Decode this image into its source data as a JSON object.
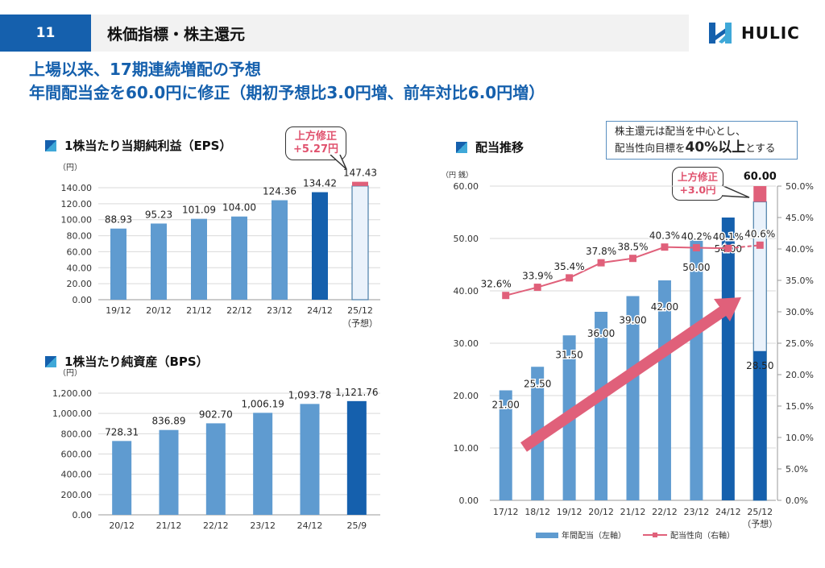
{
  "header": {
    "page_number": "11",
    "title": "株価指標・株主還元",
    "logo_text": "HULIC"
  },
  "headline": {
    "line1": "上場以来、17期連続増配の予想",
    "line2": "年間配当金を60.0円に修正（期初予想比3.0円増、前年対比6.0円増）"
  },
  "eps_section": {
    "title": "1株当たり当期純利益（EPS）",
    "callout_line1": "上方修正",
    "callout_line2": "+5.27円"
  },
  "bps_section": {
    "title": "1株当たり純資産（BPS）"
  },
  "dividend_section": {
    "title": "配当推移",
    "policy_line1": "株主還元は配当を中心とし、",
    "policy_line2_pre": "配当性向目標を",
    "policy_line2_bold": "40%以上",
    "policy_line2_post": "とする",
    "callout_line1": "上方修正",
    "callout_line2": "+3.0円"
  },
  "colors": {
    "light_bar": "#5f9bd0",
    "dark_bar": "#1560ad",
    "forecast_fill": "#eaf2fb",
    "revision": "#e0607a",
    "line": "#e0607a",
    "headline": "#1560ad"
  },
  "chart_data": [
    {
      "id": "eps",
      "type": "bar",
      "title": "1株当たり当期純利益（EPS）",
      "ylabel": "（円）",
      "categories": [
        "19/12",
        "20/12",
        "21/12",
        "22/12",
        "23/12",
        "24/12",
        "25/12"
      ],
      "category_sublabels": [
        "",
        "",
        "",
        "",
        "",
        "",
        "（予想）"
      ],
      "values": [
        88.93,
        95.23,
        101.09,
        104.0,
        124.36,
        134.42,
        147.43
      ],
      "value_labels": [
        "88.93",
        "95.23",
        "101.09",
        "104.00",
        "124.36",
        "134.42",
        "147.43"
      ],
      "bar_styles": [
        "light",
        "light",
        "light",
        "light",
        "light",
        "dark",
        "forecast"
      ],
      "forecast_revision": 5.27,
      "ylim": [
        0,
        140
      ],
      "yticks": [
        "0.00",
        "20.00",
        "40.00",
        "60.00",
        "80.00",
        "100.00",
        "120.00",
        "140.00"
      ],
      "ytick_values": [
        0,
        20,
        40,
        60,
        80,
        100,
        120,
        140
      ],
      "grid": true
    },
    {
      "id": "bps",
      "type": "bar",
      "title": "1株当たり純資産（BPS）",
      "ylabel": "（円）",
      "categories": [
        "20/12",
        "21/12",
        "22/12",
        "23/12",
        "24/12",
        "25/9"
      ],
      "values": [
        728.31,
        836.89,
        902.7,
        1006.19,
        1093.78,
        1121.76
      ],
      "value_labels": [
        "728.31",
        "836.89",
        "902.70",
        "1,006.19",
        "1,093.78",
        "1,121.76"
      ],
      "bar_styles": [
        "light",
        "light",
        "light",
        "light",
        "light",
        "dark"
      ],
      "ylim": [
        0,
        1200
      ],
      "yticks": [
        "0.00",
        "200.00",
        "400.00",
        "600.00",
        "800.00",
        "1,000.00",
        "1,200.00"
      ],
      "ytick_values": [
        0,
        200,
        400,
        600,
        800,
        1000,
        1200
      ],
      "grid": true
    },
    {
      "id": "dividend",
      "type": "bar",
      "title": "配当推移",
      "ylabel_left": "（円 銭）",
      "categories": [
        "17/12",
        "18/12",
        "19/12",
        "20/12",
        "21/12",
        "22/12",
        "23/12",
        "24/12",
        "25/12"
      ],
      "category_sublabels": [
        "",
        "",
        "",
        "",
        "",
        "",
        "",
        "",
        "（予想）"
      ],
      "series": [
        {
          "name": "年間配当（左軸）",
          "axis": "left",
          "values": [
            21.0,
            25.5,
            31.5,
            36.0,
            39.0,
            42.0,
            50.0,
            54.0,
            60.0
          ],
          "value_labels": [
            "21.00",
            "25.50",
            "31.50",
            "36.00",
            "39.00",
            "42.00",
            "50.00",
            "54.00",
            "60.00"
          ],
          "bar_styles": [
            "light",
            "light",
            "light",
            "light",
            "light",
            "light",
            "light",
            "dark",
            "forecast"
          ],
          "forecast_interim": 28.5,
          "forecast_interim_label": "28.50",
          "forecast_revision": 3.0
        },
        {
          "name": "配当性向（右軸）",
          "axis": "right",
          "type": "line",
          "values": [
            32.6,
            33.9,
            35.4,
            37.8,
            38.5,
            40.3,
            40.2,
            40.1,
            40.6
          ],
          "value_labels": [
            "32.6%",
            "33.9%",
            "35.4%",
            "37.8%",
            "38.5%",
            "40.3%",
            "40.2%",
            "40.1%",
            "40.6%"
          ],
          "last_segment_dashed": true
        }
      ],
      "ylim_left": [
        0,
        60
      ],
      "yticks_left": [
        "0.00",
        "10.00",
        "20.00",
        "30.00",
        "40.00",
        "50.00",
        "60.00"
      ],
      "ytick_values_left": [
        0,
        10,
        20,
        30,
        40,
        50,
        60
      ],
      "ylim_right": [
        0,
        50
      ],
      "yticks_right": [
        "0.0%",
        "5.0%",
        "10.0%",
        "15.0%",
        "20.0%",
        "25.0%",
        "30.0%",
        "35.0%",
        "40.0%",
        "45.0%",
        "50.0%"
      ],
      "ytick_values_right": [
        0,
        5,
        10,
        15,
        20,
        25,
        30,
        35,
        40,
        45,
        50
      ],
      "legend": [
        "年間配当（左軸）",
        "配当性向（右軸）"
      ],
      "legend_position": "bottom",
      "grid": true
    }
  ]
}
